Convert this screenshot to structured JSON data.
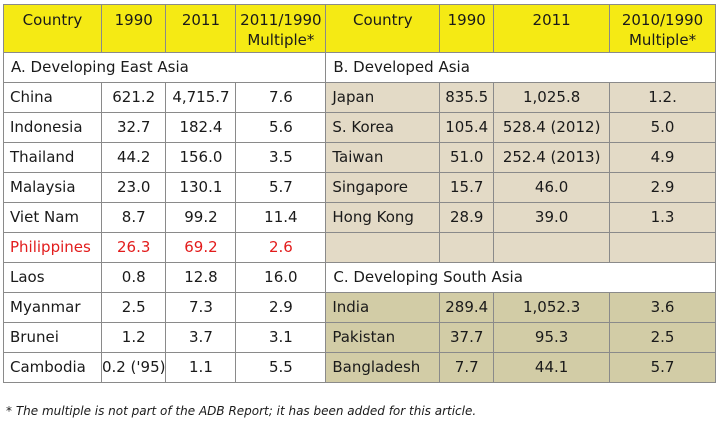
{
  "header": {
    "left": {
      "country": "Country",
      "y1990": "1990",
      "y2011": "2011",
      "multiple_line1": "2011/1990",
      "multiple_line2": "Multiple*"
    },
    "right": {
      "country": "Country",
      "y1990": "1990",
      "y2011": "2011",
      "multiple_line1": "2010/1990",
      "multiple_line2": "Multiple*"
    }
  },
  "sections": {
    "a": "A. Developing East Asia",
    "b": "B. Developed Asia",
    "c": "C. Developing South Asia"
  },
  "east_asia": [
    {
      "country": "China",
      "v1990": "621.2",
      "v2011": "4,715.7",
      "multiple": "7.6"
    },
    {
      "country": "Indonesia",
      "v1990": "32.7",
      "v2011": "182.4",
      "multiple": "5.6"
    },
    {
      "country": "Thailand",
      "v1990": "44.2",
      "v2011": "156.0",
      "multiple": "3.5"
    },
    {
      "country": "Malaysia",
      "v1990": "23.0",
      "v2011": "130.1",
      "multiple": "5.7"
    },
    {
      "country": "Viet Nam",
      "v1990": "8.7",
      "v2011": "99.2",
      "multiple": "11.4"
    },
    {
      "country": "Philippines",
      "v1990": "26.3",
      "v2011": "69.2",
      "multiple": "2.6"
    },
    {
      "country": "Laos",
      "v1990": "0.8",
      "v2011": "12.8",
      "multiple": "16.0"
    },
    {
      "country": "Myanmar",
      "v1990": "2.5",
      "v2011": "7.3",
      "multiple": "2.9"
    },
    {
      "country": "Brunei",
      "v1990": "1.2",
      "v2011": "3.7",
      "multiple": "3.1"
    },
    {
      "country": "Cambodia",
      "v1990": "0.2 ('95)",
      "v2011": "1.1",
      "multiple": "5.5"
    }
  ],
  "developed_asia": [
    {
      "country": "Japan",
      "v1990": "835.5",
      "v2011": "1,025.8",
      "multiple": "1.2."
    },
    {
      "country": "S. Korea",
      "v1990": "105.4",
      "v2011": "528.4 (2012)",
      "multiple": "5.0"
    },
    {
      "country": "Taiwan",
      "v1990": "51.0",
      "v2011": "252.4 (2013)",
      "multiple": "4.9"
    },
    {
      "country": "Singapore",
      "v1990": "15.7",
      "v2011": "46.0",
      "multiple": "2.9"
    },
    {
      "country": "Hong Kong",
      "v1990": "28.9",
      "v2011": "39.0",
      "multiple": "1.3"
    }
  ],
  "south_asia": [
    {
      "country": "India",
      "v1990": "289.4",
      "v2011": "1,052.3",
      "multiple": "3.6"
    },
    {
      "country": "Pakistan",
      "v1990": "37.7",
      "v2011": "95.3",
      "multiple": "2.5"
    },
    {
      "country": "Bangladesh",
      "v1990": "7.7",
      "v2011": "44.1",
      "multiple": "5.7"
    }
  ],
  "footnote": "* The multiple is not part of the ADB Report; it has been added for this article.",
  "colors": {
    "header": "#f5ea14",
    "developed": "#e3dac6",
    "south": "#d2cca6",
    "highlight_text": "#e21c1c"
  }
}
